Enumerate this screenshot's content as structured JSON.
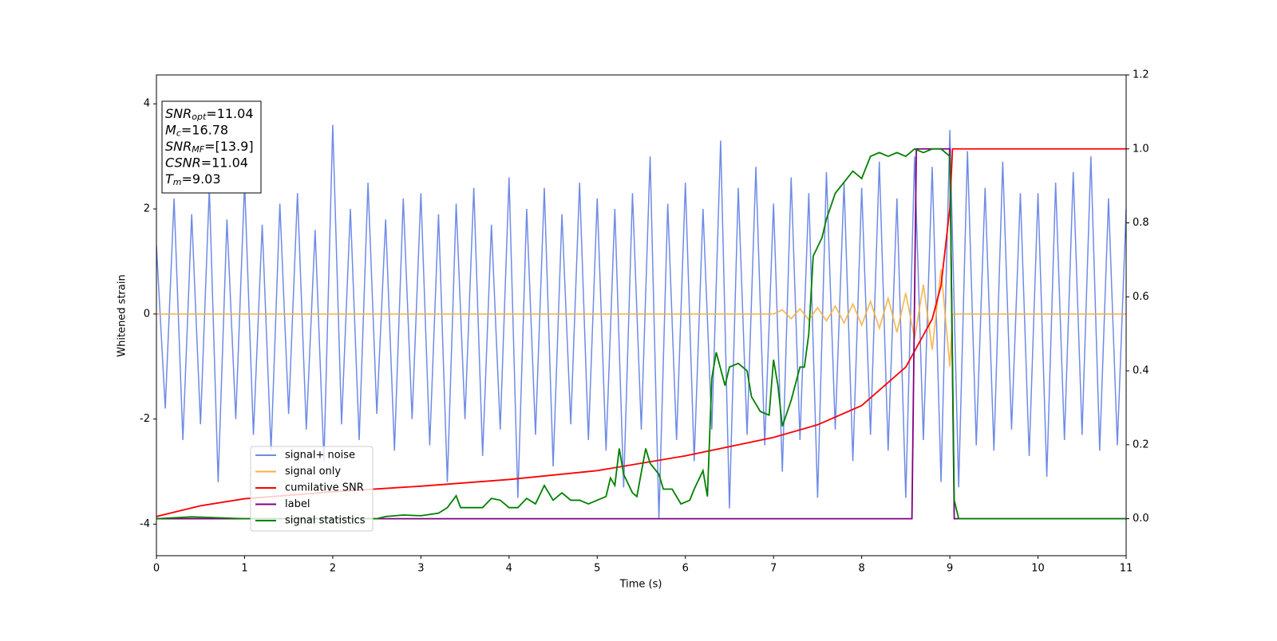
{
  "chart_data": {
    "type": "line",
    "xlabel": "Time (s)",
    "ylabel": "Whitened strain",
    "xlim": [
      0,
      11
    ],
    "xticks": [
      0,
      1,
      2,
      3,
      4,
      5,
      6,
      7,
      8,
      9,
      10,
      11
    ],
    "ylim": [
      -4.6,
      4.55
    ],
    "yticks": [
      -4,
      -2,
      0,
      2,
      4
    ],
    "y2lim": [
      -0.1,
      1.2
    ],
    "y2ticks": [
      {
        "value": 0,
        "label": "0.0"
      },
      {
        "value": 0.2,
        "label": "0.2"
      },
      {
        "value": 0.4,
        "label": "0.4"
      },
      {
        "value": 0.6,
        "label": "0.6"
      },
      {
        "value": 0.8,
        "label": "0.8"
      },
      {
        "value": 1,
        "label": "1.0"
      },
      {
        "value": 1.2,
        "label": "1.2"
      }
    ],
    "legend": "lower left",
    "annotations": [
      {
        "symbol": "SNR",
        "sub": "opt",
        "text": "=11.04"
      },
      {
        "symbol": "M",
        "sub": "c",
        "text": "=16.78"
      },
      {
        "symbol": "SNR",
        "sub": "MF",
        "text": "=[13.9]"
      },
      {
        "symbol": "CSNR",
        "text": "=11.04"
      },
      {
        "symbol": "T",
        "sub": "m",
        "text": "=9.03"
      }
    ],
    "series": [
      {
        "name": "signal+ noise",
        "color": "#6f8be6",
        "x": [
          0,
          0.1,
          0.2,
          0.3,
          0.4,
          0.5,
          0.6,
          0.7,
          0.8,
          0.9,
          1,
          1.1,
          1.2,
          1.3,
          1.4,
          1.5,
          1.6,
          1.7,
          1.8,
          1.9,
          2,
          2.1,
          2.2,
          2.3,
          2.4,
          2.5,
          2.6,
          2.7,
          2.8,
          2.9,
          3,
          3.1,
          3.2,
          3.3,
          3.4,
          3.5,
          3.6,
          3.7,
          3.8,
          3.9,
          4,
          4.1,
          4.2,
          4.3,
          4.4,
          4.5,
          4.6,
          4.7,
          4.8,
          4.9,
          5,
          5.1,
          5.2,
          5.3,
          5.4,
          5.5,
          5.6,
          5.7,
          5.8,
          5.9,
          6,
          6.1,
          6.2,
          6.3,
          6.4,
          6.5,
          6.6,
          6.7,
          6.8,
          6.9,
          7,
          7.1,
          7.2,
          7.3,
          7.4,
          7.5,
          7.6,
          7.7,
          7.8,
          7.9,
          8,
          8.1,
          8.2,
          8.3,
          8.4,
          8.5,
          8.6,
          8.7,
          8.8,
          8.9,
          9,
          9.1,
          9.2,
          9.3,
          9.4,
          9.5,
          9.6,
          9.7,
          9.8,
          9.9,
          10,
          10.1,
          10.2,
          10.3,
          10.4,
          10.5,
          10.6,
          10.7,
          10.8,
          10.9,
          11
        ],
        "values": [
          1.3,
          -1.8,
          2.2,
          -2.4,
          1.9,
          -2.1,
          2.4,
          -3.2,
          1.8,
          -2.0,
          2.5,
          -2.3,
          1.7,
          -2.6,
          2.1,
          -1.9,
          2.3,
          -2.2,
          1.6,
          -2.8,
          3.6,
          -2.1,
          2.0,
          -2.4,
          2.5,
          -1.9,
          1.8,
          -2.6,
          2.2,
          -2.0,
          2.3,
          -2.5,
          1.9,
          -3.2,
          2.1,
          -2.0,
          2.4,
          -2.7,
          1.7,
          -2.2,
          2.6,
          -3.5,
          2.0,
          -2.3,
          2.4,
          -2.9,
          1.9,
          -2.1,
          2.5,
          -2.4,
          2.2,
          -2.6,
          2.0,
          -3.3,
          2.3,
          -2.2,
          3.0,
          -3.9,
          2.1,
          -2.4,
          2.5,
          -2.8,
          2.0,
          -2.2,
          3.3,
          -3.7,
          2.4,
          -2.3,
          2.8,
          -2.5,
          2.1,
          -3.0,
          2.6,
          -2.4,
          2.3,
          -3.5,
          2.7,
          -2.2,
          2.5,
          -2.8,
          2.4,
          -2.3,
          2.9,
          -2.6,
          2.2,
          -3.5,
          3.0,
          -2.4,
          2.8,
          -3.2,
          3.5,
          -3.3,
          3.1,
          -2.5,
          2.4,
          -2.6,
          2.9,
          -2.2,
          2.3,
          -2.7,
          2.3,
          -3.1,
          2.5,
          -2.4,
          2.7,
          -2.3,
          3.0,
          -2.6,
          2.2,
          -2.5,
          2.0
        ]
      },
      {
        "name": "signal only",
        "color": "#f5b041",
        "x": [
          0,
          1,
          2,
          3,
          4,
          5,
          6,
          7,
          7.1,
          7.2,
          7.3,
          7.4,
          7.5,
          7.6,
          7.7,
          7.8,
          7.9,
          8,
          8.1,
          8.2,
          8.3,
          8.4,
          8.5,
          8.6,
          8.7,
          8.8,
          8.9,
          9,
          9.03,
          11
        ],
        "values": [
          0,
          0,
          0,
          0,
          0,
          0,
          0,
          0,
          0.08,
          -0.09,
          0.1,
          -0.11,
          0.12,
          -0.13,
          0.15,
          -0.17,
          0.19,
          -0.21,
          0.24,
          -0.27,
          0.3,
          -0.35,
          0.4,
          -0.47,
          0.56,
          -0.68,
          0.85,
          -1.0,
          0,
          0
        ]
      },
      {
        "name": "cumilative SNR",
        "color": "#ff0000",
        "axis": "y2",
        "x": [
          0,
          0.5,
          1,
          2,
          3,
          4,
          5,
          6,
          7,
          7.5,
          8,
          8.5,
          8.8,
          8.9,
          9,
          9.03,
          11
        ],
        "values": [
          0.006,
          0.035,
          0.054,
          0.073,
          0.088,
          0.106,
          0.13,
          0.17,
          0.22,
          0.254,
          0.306,
          0.41,
          0.54,
          0.63,
          0.84,
          1.0,
          1.0
        ]
      },
      {
        "name": "label",
        "color": "#800080",
        "axis": "y2",
        "x": [
          0,
          8.57,
          8.62,
          9.0,
          9.05,
          11
        ],
        "values": [
          0,
          0,
          1,
          1,
          0,
          0
        ]
      },
      {
        "name": "signal statistics",
        "color": "#008000",
        "axis": "y2",
        "x": [
          0,
          0.4,
          1,
          2.5,
          2.6,
          2.8,
          3,
          3.2,
          3.3,
          3.4,
          3.45,
          3.7,
          3.8,
          3.9,
          4,
          4.1,
          4.2,
          4.3,
          4.4,
          4.5,
          4.6,
          4.7,
          4.8,
          4.9,
          5,
          5.1,
          5.15,
          5.2,
          5.25,
          5.3,
          5.4,
          5.45,
          5.55,
          5.6,
          5.7,
          5.75,
          5.85,
          5.95,
          6.05,
          6.1,
          6.2,
          6.25,
          6.3,
          6.35,
          6.45,
          6.5,
          6.6,
          6.7,
          6.75,
          6.85,
          6.95,
          7,
          7.05,
          7.1,
          7.2,
          7.3,
          7.35,
          7.4,
          7.45,
          7.55,
          7.6,
          7.7,
          7.8,
          7.9,
          8,
          8.1,
          8.2,
          8.3,
          8.4,
          8.5,
          8.6,
          8.7,
          8.8,
          8.9,
          9,
          9.05,
          9.1,
          10,
          11
        ],
        "values": [
          0,
          0.005,
          0,
          0,
          0.006,
          0.01,
          0.008,
          0.015,
          0.03,
          0.062,
          0.03,
          0.03,
          0.055,
          0.05,
          0.03,
          0.03,
          0.055,
          0.04,
          0.09,
          0.05,
          0.07,
          0.05,
          0.05,
          0.04,
          0.05,
          0.06,
          0.11,
          0.09,
          0.19,
          0.12,
          0.07,
          0.06,
          0.19,
          0.15,
          0.12,
          0.08,
          0.08,
          0.04,
          0.05,
          0.08,
          0.13,
          0.06,
          0.38,
          0.45,
          0.36,
          0.41,
          0.42,
          0.4,
          0.33,
          0.29,
          0.28,
          0.43,
          0.36,
          0.25,
          0.32,
          0.41,
          0.41,
          0.5,
          0.71,
          0.76,
          0.81,
          0.88,
          0.91,
          0.94,
          0.92,
          0.98,
          0.99,
          0.98,
          0.99,
          0.98,
          1.0,
          0.99,
          1.0,
          1.0,
          0.98,
          0.05,
          0,
          0,
          0
        ]
      }
    ]
  }
}
